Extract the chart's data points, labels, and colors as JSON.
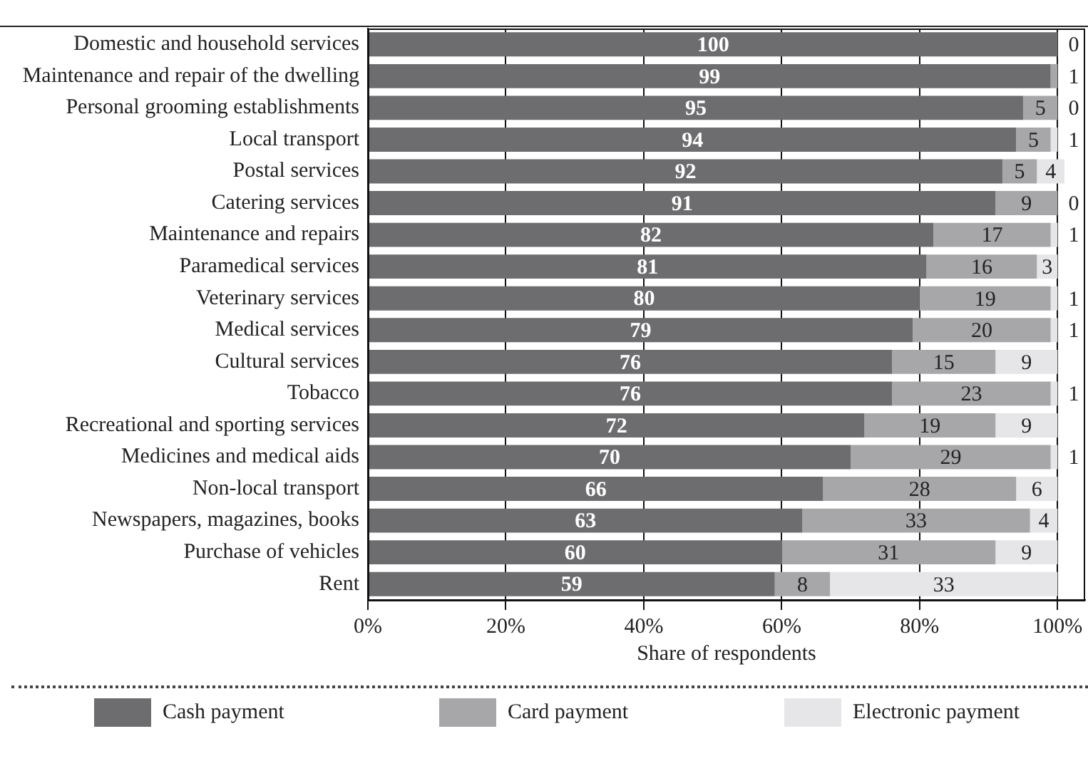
{
  "chart_data": {
    "type": "bar",
    "orientation": "horizontal",
    "stacked": true,
    "xlabel": "Share of respondents",
    "categories": [
      "Domestic and household services",
      "Maintenance and repair of the dwelling",
      "Personal grooming establishments",
      "Local transport",
      "Postal services",
      "Catering services",
      "Maintenance and repairs",
      "Paramedical services",
      "Veterinary services",
      "Medical services",
      "Cultural services",
      "Tobacco",
      "Recreational and sporting services",
      "Medicines and medical aids",
      "Non-local transport",
      "Newspapers, magazines, books",
      "Purchase of vehicles",
      "Rent"
    ],
    "series": [
      {
        "name": "Cash payment",
        "color": "#6d6d70",
        "values": [
          100,
          99,
          95,
          94,
          92,
          91,
          82,
          81,
          80,
          79,
          76,
          76,
          72,
          70,
          66,
          63,
          60,
          59
        ]
      },
      {
        "name": "Card payment",
        "color": "#a7a7aa",
        "values": [
          0,
          1,
          5,
          5,
          5,
          9,
          17,
          16,
          19,
          20,
          15,
          23,
          19,
          29,
          28,
          33,
          31,
          8
        ],
        "value_labels": [
          null,
          "1",
          "5",
          "5",
          "5",
          "9",
          "17",
          "16",
          "19",
          "20",
          "15",
          "23",
          "19",
          "29",
          "28",
          "33",
          "31",
          "8"
        ]
      },
      {
        "name": "Electronic payment",
        "color": "#e6e6e8",
        "values": [
          0,
          0,
          0,
          1,
          4,
          0,
          1,
          3,
          1,
          1,
          9,
          1,
          9,
          1,
          6,
          4,
          9,
          33
        ],
        "value_labels": [
          "0",
          null,
          "0",
          "1",
          "4",
          "0",
          "1",
          "3",
          "1",
          "1",
          "9",
          "1",
          "9",
          "1",
          "6",
          "4",
          "9",
          "33"
        ]
      }
    ],
    "data_labels": true,
    "xlim": [
      0,
      104
    ],
    "xticks": [
      {
        "value": 0,
        "label": "0%"
      },
      {
        "value": 20,
        "label": "20%"
      },
      {
        "value": 40,
        "label": "40%"
      },
      {
        "value": 60,
        "label": "60%"
      },
      {
        "value": 80,
        "label": "80%"
      },
      {
        "value": 100,
        "label": "100%"
      }
    ],
    "grid": "x",
    "legend": "bottom"
  }
}
